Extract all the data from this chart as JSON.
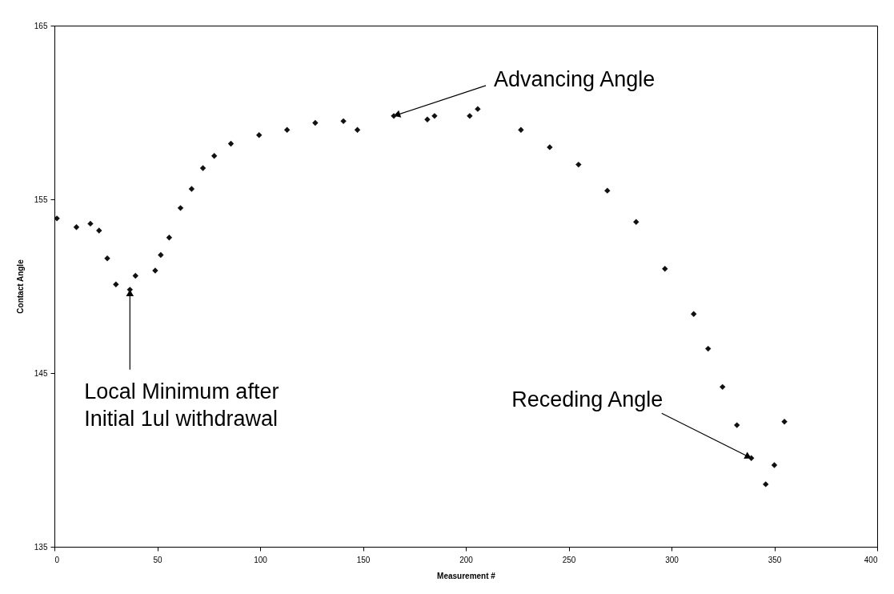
{
  "chart_data": {
    "type": "scatter",
    "xlabel": "Measurement #",
    "ylabel": "Contact Angle",
    "x": [
      1.2,
      10.7,
      17.5,
      21.7,
      25.7,
      29.9,
      36.7,
      39.4,
      49,
      51.7,
      55.8,
      61.3,
      66.7,
      72.2,
      77.7,
      85.8,
      99.5,
      113.1,
      126.8,
      140.5,
      147.3,
      165,
      181.3,
      184.8,
      201.9,
      205.8,
      226.8,
      240.8,
      254.8,
      268.8,
      282.8,
      296.8,
      310.8,
      317.8,
      324.8,
      331.8,
      338.8,
      345.8,
      350,
      354.9
    ],
    "series": [
      {
        "color": "#111111",
        "values": [
          153.9,
          153.4,
          153.6,
          153.2,
          151.6,
          150.1,
          149.8,
          150.6,
          150.9,
          151.8,
          152.8,
          154.5,
          155.6,
          156.8,
          157.5,
          158.2,
          158.7,
          159.0,
          159.4,
          159.5,
          159.0,
          159.8,
          159.6,
          159.8,
          159.8,
          160.2,
          159.0,
          158.0,
          157.0,
          155.5,
          153.7,
          151.0,
          148.4,
          146.4,
          144.2,
          142.0,
          140.1,
          138.6,
          139.7,
          142.2
        ]
      }
    ],
    "marker": "diamond",
    "xlim": [
      0,
      400
    ],
    "xticks": [
      0,
      50,
      100,
      150,
      200,
      250,
      300,
      350,
      400
    ],
    "ylim": [
      135,
      165
    ],
    "yticks": [
      135,
      145,
      155,
      165
    ],
    "grid": false,
    "annotations": [
      {
        "text": "Advancing Angle",
        "x": 165,
        "y": 159.8
      },
      {
        "text": "Receding Angle",
        "x": 338.8,
        "y": 140.1
      },
      {
        "text": "Local Minimum after\nInitial 1ul withdrawal",
        "x": 36.7,
        "y": 149.8
      }
    ]
  }
}
